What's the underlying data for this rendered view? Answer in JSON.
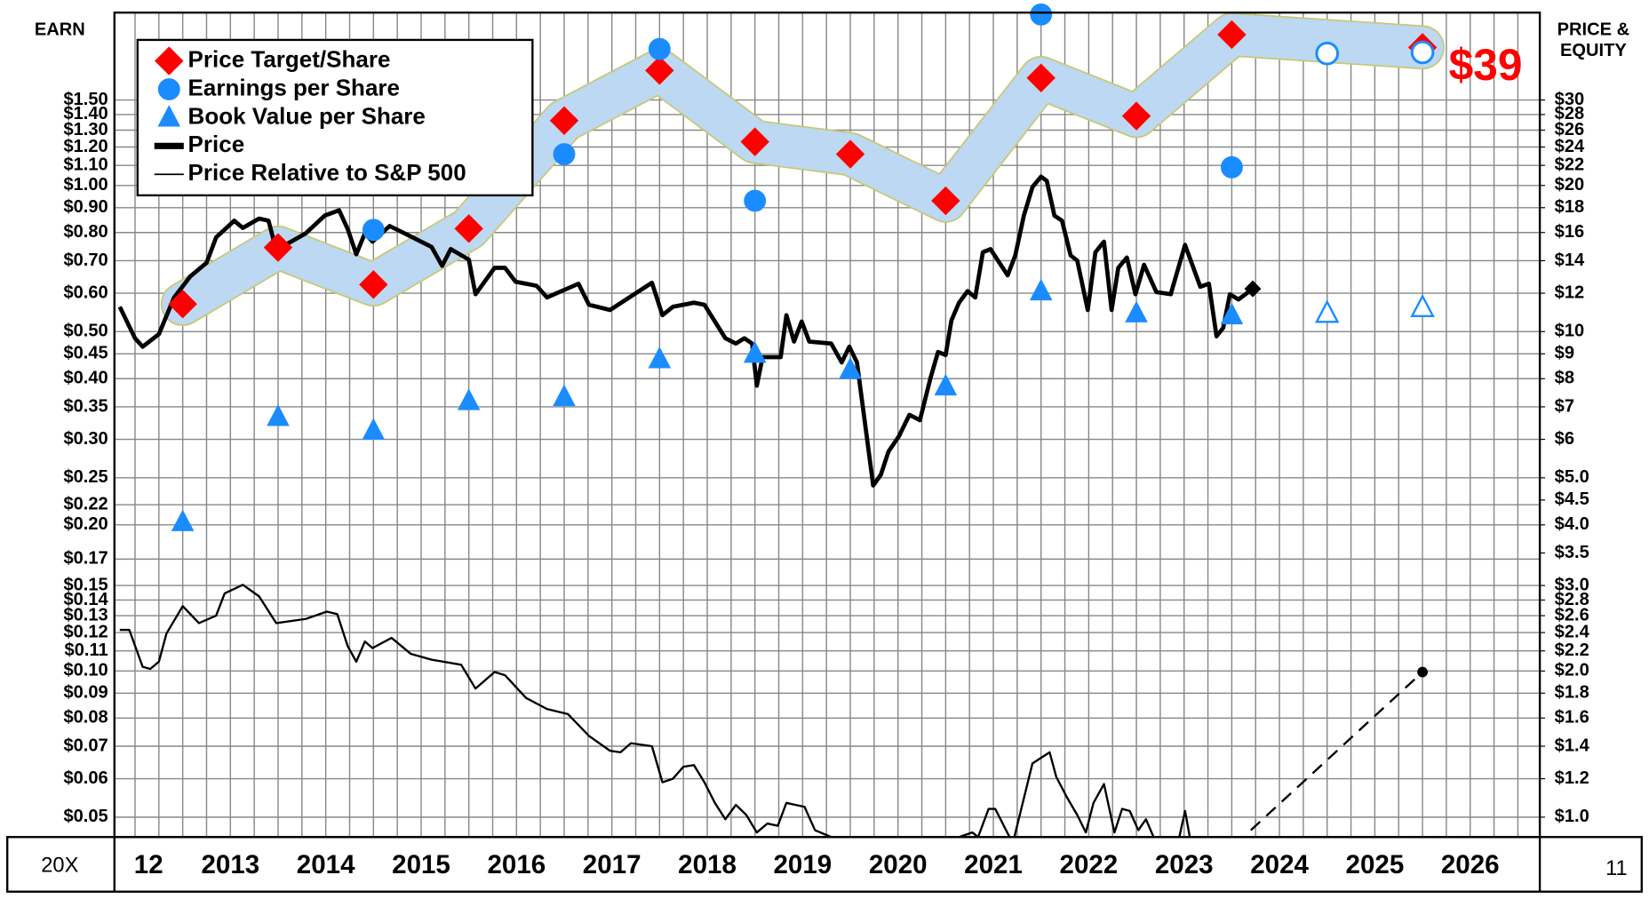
{
  "chart_data": {
    "type": "line",
    "left_axis_label": "EARN",
    "right_axis_label": [
      "PRICE &",
      "EQUITY"
    ],
    "corner_left": "20X",
    "corner_right": "11",
    "target_label": "$39",
    "log_scale": true,
    "grid": true,
    "legend": "top-left",
    "xlim": [
      2012.284,
      2027.23
    ],
    "ylim": [
      0.0455,
      2.27
    ],
    "y2lim": [
      0.91,
      45.4
    ],
    "categories": [
      "12",
      "2013",
      "2014",
      "2015",
      "2016",
      "2017",
      "2018",
      "2019",
      "2020",
      "2021",
      "2022",
      "2023",
      "2024",
      "2025",
      "2026"
    ],
    "xticks": [
      2012.5,
      2012.75,
      2013,
      2013.25,
      2013.5,
      2013.75,
      2014,
      2014.25,
      2014.5,
      2014.75,
      2015,
      2015.25,
      2015.5,
      2015.75,
      2016,
      2016.25,
      2016.5,
      2016.75,
      2017,
      2017.25,
      2017.5,
      2017.75,
      2018,
      2018.25,
      2018.5,
      2018.75,
      2019,
      2019.25,
      2019.5,
      2019.75,
      2020,
      2020.25,
      2020.5,
      2020.75,
      2021,
      2021.25,
      2021.5,
      2021.75,
      2022,
      2022.25,
      2022.5,
      2022.75,
      2023,
      2023.25,
      2023.5,
      2023.75,
      2024,
      2024.25,
      2024.5,
      2024.75,
      2025,
      2025.25,
      2025.5,
      2025.75,
      2026,
      2026.25,
      2026.5,
      2026.75,
      2027
    ],
    "yticks": [
      {
        "value": 1.5,
        "label": "$1.50"
      },
      {
        "value": 1.4,
        "label": "$1.40"
      },
      {
        "value": 1.3,
        "label": "$1.30"
      },
      {
        "value": 1.2,
        "label": "$1.20"
      },
      {
        "value": 1.1,
        "label": "$1.10"
      },
      {
        "value": 1.0,
        "label": "$1.00"
      },
      {
        "value": 0.9,
        "label": "$0.90"
      },
      {
        "value": 0.8,
        "label": "$0.80"
      },
      {
        "value": 0.7,
        "label": "$0.70"
      },
      {
        "value": 0.6,
        "label": "$0.60"
      },
      {
        "value": 0.5,
        "label": "$0.50"
      },
      {
        "value": 0.45,
        "label": "$0.45"
      },
      {
        "value": 0.4,
        "label": "$0.40"
      },
      {
        "value": 0.35,
        "label": "$0.35"
      },
      {
        "value": 0.3,
        "label": "$0.30"
      },
      {
        "value": 0.25,
        "label": "$0.25"
      },
      {
        "value": 0.22,
        "label": "$0.22"
      },
      {
        "value": 0.2,
        "label": "$0.20"
      },
      {
        "value": 0.17,
        "label": "$0.17"
      },
      {
        "value": 0.15,
        "label": "$0.15"
      },
      {
        "value": 0.14,
        "label": "$0.14"
      },
      {
        "value": 0.13,
        "label": "$0.13"
      },
      {
        "value": 0.12,
        "label": "$0.12"
      },
      {
        "value": 0.11,
        "label": "$0.11"
      },
      {
        "value": 0.1,
        "label": "$0.10"
      },
      {
        "value": 0.09,
        "label": "$0.09"
      },
      {
        "value": 0.08,
        "label": "$0.08"
      },
      {
        "value": 0.07,
        "label": "$0.07"
      },
      {
        "value": 0.06,
        "label": "$0.06"
      },
      {
        "value": 0.05,
        "label": "$0.05"
      }
    ],
    "y2ticks": [
      {
        "value": 30,
        "label": "$30"
      },
      {
        "value": 28,
        "label": "$28"
      },
      {
        "value": 26,
        "label": "$26"
      },
      {
        "value": 24,
        "label": "$24"
      },
      {
        "value": 22,
        "label": "$22"
      },
      {
        "value": 20,
        "label": "$20"
      },
      {
        "value": 18,
        "label": "$18"
      },
      {
        "value": 16,
        "label": "$16"
      },
      {
        "value": 14,
        "label": "$14"
      },
      {
        "value": 12,
        "label": "$12"
      },
      {
        "value": 10,
        "label": "$10"
      },
      {
        "value": 9,
        "label": "$9"
      },
      {
        "value": 8,
        "label": "$8"
      },
      {
        "value": 7,
        "label": "$7"
      },
      {
        "value": 6,
        "label": "$6"
      },
      {
        "value": 5,
        "label": "$5.0"
      },
      {
        "value": 4.5,
        "label": "$4.5"
      },
      {
        "value": 4,
        "label": "$4.0"
      },
      {
        "value": 3.5,
        "label": "$3.5"
      },
      {
        "value": 3,
        "label": "$3.0"
      },
      {
        "value": 2.8,
        "label": "$2.8"
      },
      {
        "value": 2.6,
        "label": "$2.6"
      },
      {
        "value": 2.4,
        "label": "$2.4"
      },
      {
        "value": 2.2,
        "label": "$2.2"
      },
      {
        "value": 2,
        "label": "$2.0"
      },
      {
        "value": 1.8,
        "label": "$1.8"
      },
      {
        "value": 1.6,
        "label": "$1.6"
      },
      {
        "value": 1.4,
        "label": "$1.4"
      },
      {
        "value": 1.2,
        "label": "$1.2"
      },
      {
        "value": 1,
        "label": "$1.0"
      }
    ],
    "series": [
      {
        "name": "Price Target/Share",
        "color": "#ff0000",
        "marker": "diamond",
        "band_color": "#bcd8f2",
        "axis": "y2",
        "x": [
          2013,
          2014,
          2015,
          2016,
          2017,
          2018,
          2019,
          2020,
          2021,
          2022,
          2023,
          2024,
          2026
        ],
        "values": [
          11.4,
          14.9,
          12.5,
          16.3,
          27.2,
          34.5,
          24.6,
          23.2,
          18.6,
          33.3,
          27.8,
          40.9,
          38.5
        ]
      },
      {
        "name": "Earnings per Share",
        "color": "#1a8cff",
        "marker": "circle",
        "axis": "y",
        "x": [
          2015,
          2017,
          2018,
          2019,
          2022,
          2024,
          2025,
          2026
        ],
        "values": [
          0.81,
          1.16,
          1.91,
          0.93,
          2.25,
          1.09,
          1.87,
          1.88
        ],
        "estimated": [
          false,
          false,
          false,
          false,
          false,
          false,
          true,
          true
        ]
      },
      {
        "name": "Book Value per Share",
        "color": "#1a8cff",
        "marker": "triangle",
        "axis": "y2",
        "x": [
          2013,
          2014,
          2015,
          2016,
          2017,
          2018,
          2019,
          2020,
          2021,
          2022,
          2023,
          2024,
          2025,
          2026
        ],
        "values": [
          4.05,
          6.67,
          6.25,
          7.19,
          7.33,
          8.77,
          9.0,
          8.34,
          7.71,
          12.1,
          10.9,
          10.8,
          10.9,
          11.2
        ],
        "estimated": [
          false,
          false,
          false,
          false,
          false,
          false,
          false,
          false,
          false,
          false,
          false,
          false,
          true,
          true
        ]
      },
      {
        "name": "Price",
        "color": "#000000",
        "line_width": 4,
        "axis": "y2",
        "end_marker": "diamond",
        "x": [
          2012.34,
          2012.5,
          2012.58,
          2012.75,
          2012.91,
          2013.08,
          2013.25,
          2013.35,
          2013.54,
          2013.63,
          2013.8,
          2013.9,
          2013.98,
          2014.29,
          2014.49,
          2014.64,
          2014.73,
          2014.82,
          2014.91,
          2014.99,
          2015.17,
          2015.39,
          2015.61,
          2015.72,
          2015.81,
          2016.0,
          2016.07,
          2016.27,
          2016.38,
          2016.49,
          2016.71,
          2016.82,
          2017.15,
          2017.26,
          2017.48,
          2017.7,
          2017.92,
          2018.03,
          2018.14,
          2018.36,
          2018.47,
          2018.69,
          2018.8,
          2018.89,
          2018.97,
          2019.02,
          2019.08,
          2019.27,
          2019.33,
          2019.41,
          2019.49,
          2019.57,
          2019.8,
          2019.91,
          2019.99,
          2020.07,
          2020.15,
          2020.24,
          2020.32,
          2020.4,
          2020.51,
          2020.62,
          2020.73,
          2020.84,
          2020.92,
          2021.0,
          2021.06,
          2021.14,
          2021.23,
          2021.31,
          2021.39,
          2021.47,
          2021.65,
          2021.73,
          2021.82,
          2021.91,
          2022.0,
          2022.06,
          2022.14,
          2022.22,
          2022.31,
          2022.38,
          2022.49,
          2022.57,
          2022.66,
          2022.74,
          2022.81,
          2022.9,
          2022.99,
          2023.08,
          2023.21,
          2023.36,
          2023.51,
          2023.67,
          2023.76,
          2023.84,
          2023.91,
          2023.98,
          2024.07,
          2024.22
        ],
        "values": [
          11.25,
          9.69,
          9.31,
          9.88,
          11.76,
          13.0,
          13.86,
          15.63,
          16.92,
          16.35,
          17.09,
          16.92,
          14.72,
          15.94,
          17.34,
          17.78,
          16.26,
          14.43,
          15.94,
          15.32,
          16.5,
          15.71,
          14.94,
          13.66,
          14.79,
          14.07,
          11.94,
          13.53,
          13.53,
          12.67,
          12.43,
          11.76,
          12.55,
          11.36,
          11.08,
          11.82,
          12.61,
          10.81,
          11.25,
          11.47,
          11.36,
          9.69,
          9.45,
          9.69,
          9.45,
          7.74,
          8.86,
          8.86,
          10.81,
          9.54,
          10.49,
          9.54,
          9.45,
          8.64,
          9.31,
          8.64,
          6.57,
          4.82,
          5.07,
          5.66,
          6.09,
          6.74,
          6.57,
          8.01,
          9.08,
          8.95,
          10.54,
          11.47,
          12.12,
          11.76,
          14.57,
          14.79,
          13.06,
          14.36,
          17.34,
          19.85,
          20.85,
          20.45,
          17.34,
          16.92,
          14.36,
          14.0,
          11.08,
          14.57,
          15.32,
          11.08,
          13.53,
          14.21,
          11.94,
          13.73,
          12.06,
          11.94,
          15.09,
          12.37,
          12.55,
          9.78,
          10.18,
          11.94,
          11.65,
          12.25
        ]
      },
      {
        "name": "Price Relative to S&P 500",
        "color": "#000000",
        "line_width": 2,
        "axis": "y2",
        "x": [
          2012.34,
          2012.44,
          2012.58,
          2012.66,
          2012.75,
          2012.83,
          2013.0,
          2013.17,
          2013.35,
          2013.44,
          2013.63,
          2013.8,
          2013.98,
          2014.29,
          2014.51,
          2014.62,
          2014.73,
          2014.82,
          2014.91,
          2014.99,
          2015.19,
          2015.39,
          2015.61,
          2015.92,
          2016.07,
          2016.27,
          2016.38,
          2016.6,
          2016.82,
          2017.04,
          2017.26,
          2017.48,
          2017.59,
          2017.7,
          2017.92,
          2018.03,
          2018.14,
          2018.25,
          2018.36,
          2018.47,
          2018.58,
          2018.69,
          2018.8,
          2018.91,
          2019.02,
          2019.13,
          2019.24,
          2019.33,
          2019.52,
          2019.63,
          2019.8,
          2020.5,
          2021.14,
          2021.28,
          2021.34,
          2021.45,
          2021.52,
          2021.67,
          2021.72,
          2021.91,
          2022.09,
          2022.16,
          2022.27,
          2022.38,
          2022.47,
          2022.55,
          2022.66,
          2022.77,
          2022.85,
          2022.93,
          2023.02,
          2023.1,
          2023.18,
          2023.3,
          2023.45,
          2023.51,
          2023.56
        ],
        "values": [
          2.43,
          2.43,
          2.04,
          2.02,
          2.09,
          2.39,
          2.72,
          2.51,
          2.6,
          2.89,
          3.01,
          2.85,
          2.51,
          2.56,
          2.65,
          2.62,
          2.25,
          2.09,
          2.3,
          2.23,
          2.34,
          2.17,
          2.11,
          2.06,
          1.84,
          1.99,
          1.96,
          1.76,
          1.67,
          1.63,
          1.47,
          1.37,
          1.36,
          1.42,
          1.4,
          1.18,
          1.2,
          1.27,
          1.28,
          1.18,
          1.07,
          0.99,
          1.06,
          1.01,
          0.93,
          0.97,
          0.96,
          1.07,
          1.05,
          0.94,
          0.91,
          null,
          0.91,
          0.93,
          0.91,
          1.04,
          1.04,
          0.91,
          0.91,
          1.29,
          1.36,
          1.21,
          1.1,
          1.01,
          0.93,
          1.07,
          1.17,
          0.93,
          1.04,
          1.03,
          0.94,
          0.99,
          0.91,
          null,
          0.91,
          1.03,
          0.91
        ]
      },
      {
        "color": "#000000",
        "line_width": 2,
        "dashed": true,
        "axis": "y2",
        "end_marker": "circle",
        "x": [
          2024.2,
          2026.0
        ],
        "values": [
          0.94,
          1.99
        ]
      }
    ]
  }
}
